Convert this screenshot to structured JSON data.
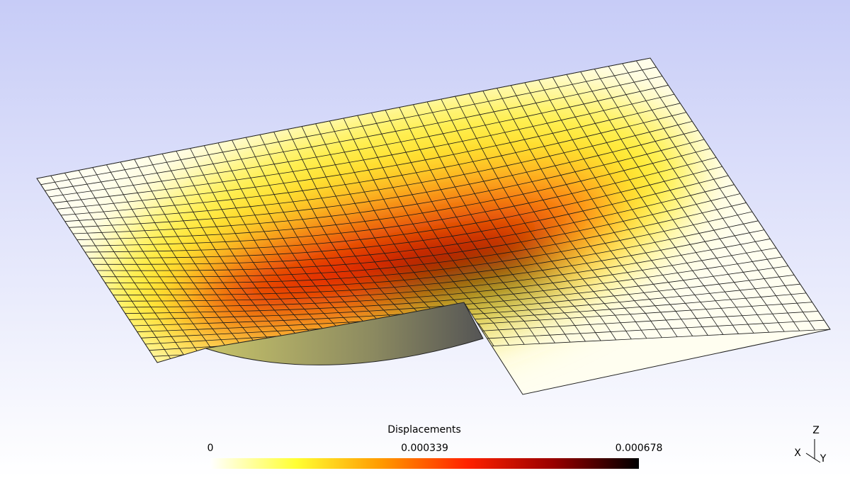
{
  "colorbar": {
    "title": "Displacements",
    "range": [
      0,
      0.000678
    ],
    "ticks": [
      0,
      0.000339,
      0.000678
    ],
    "colors": [
      "#ffffff",
      "#ffff33",
      "#ff9900",
      "#ff2200",
      "#990000",
      "#000000"
    ]
  },
  "axes": {
    "z": "Z",
    "x": "X",
    "y": "Y"
  }
}
